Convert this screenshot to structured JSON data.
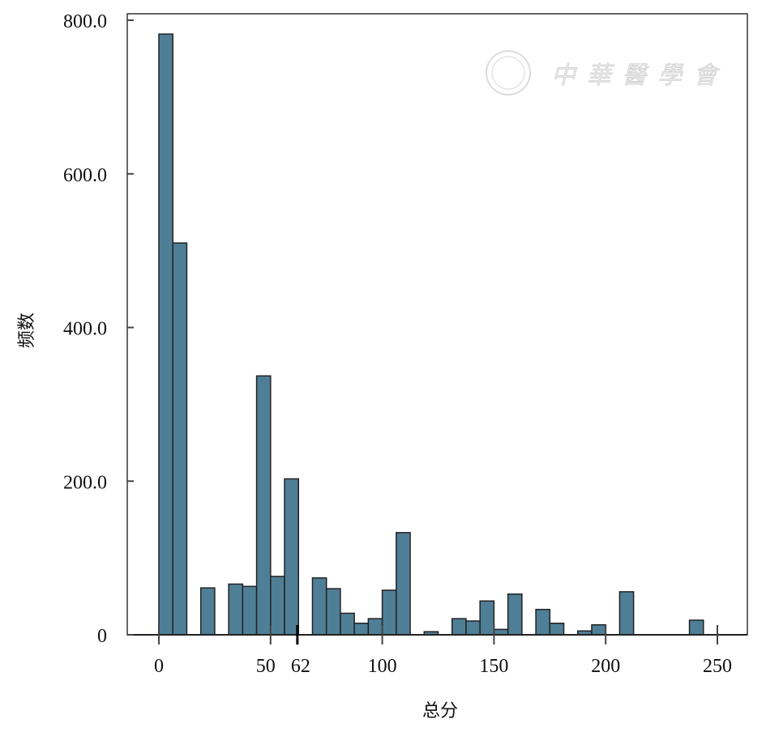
{
  "chart_data": {
    "type": "bar",
    "title": "",
    "xlabel": "总分",
    "ylabel": "频数",
    "xlim": [
      -14,
      264
    ],
    "ylim": [
      0,
      800
    ],
    "bin_width": 6.25,
    "x_ticks": [
      "0",
      "50",
      "62",
      "100",
      "150",
      "200",
      "250"
    ],
    "x_tick_values": [
      0,
      50,
      62,
      100,
      150,
      200,
      250
    ],
    "y_ticks": [
      "0",
      "200.0",
      "400.0",
      "600.0",
      "800.0"
    ],
    "y_tick_values": [
      0,
      200,
      400,
      600,
      800
    ],
    "bins_start": [
      0,
      6.25,
      18.75,
      31.25,
      37.5,
      43.75,
      50,
      56.25,
      68.75,
      75,
      81.25,
      87.5,
      93.75,
      100,
      106.25,
      118.75,
      131.25,
      137.5,
      143.75,
      150,
      156.25,
      168.75,
      175,
      187.5,
      193.75,
      206.25,
      237.5
    ],
    "values": [
      782,
      510,
      61,
      66,
      63,
      337,
      76,
      203,
      74,
      60,
      28,
      15,
      21,
      58,
      133,
      4,
      21,
      18,
      44,
      7,
      53,
      33,
      15,
      5,
      13,
      56,
      19
    ],
    "bar_color": "#4f7f96",
    "grid": false
  },
  "watermark": {
    "text": "中華醫學會"
  }
}
